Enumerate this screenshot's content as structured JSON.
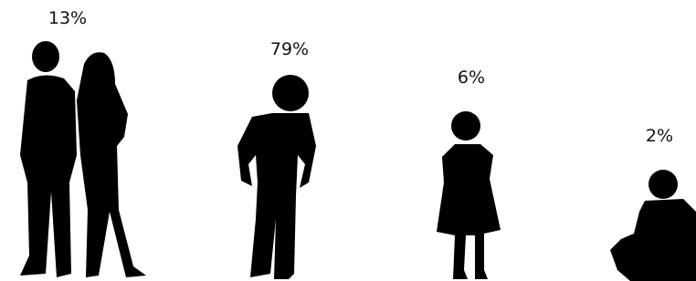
{
  "figures": [
    {
      "label": "13%"
    },
    {
      "label": "79%"
    },
    {
      "label": "6%"
    },
    {
      "label": "2%"
    }
  ]
}
